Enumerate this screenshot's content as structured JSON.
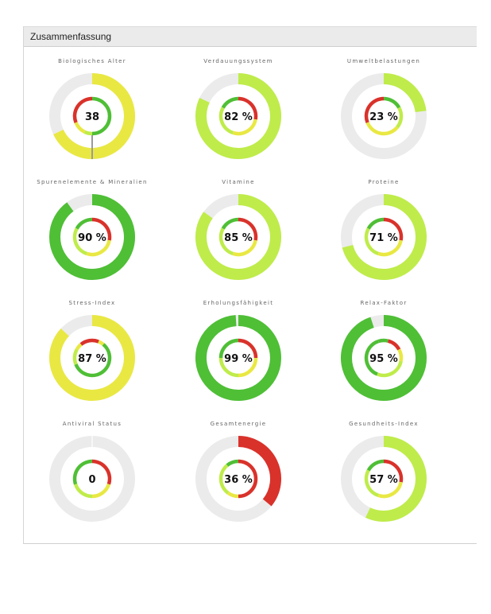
{
  "panel": {
    "title": "Zusammenfassung"
  },
  "colors": {
    "track": "#ebebeb",
    "red": "#d9322b",
    "yellow": "#e9e843",
    "yellow_green": "#bfec4a",
    "green": "#4fbf36",
    "needle": "#9a9a9a",
    "text": "#111111"
  },
  "chart_data": [
    {
      "type": "gauge",
      "title": "Biologisches Alter",
      "value_label": "38",
      "value": 38,
      "fill_fraction": 0.68,
      "fill_color": "yellow",
      "needle": true,
      "needle_fraction": 0.5,
      "inner_segments": [
        {
          "from": 0.0,
          "to": 0.5,
          "color": "green"
        },
        {
          "from": 0.5,
          "to": 0.57,
          "color": "yellow_green"
        },
        {
          "from": 0.57,
          "to": 0.69,
          "color": "yellow"
        },
        {
          "from": 0.69,
          "to": 1.0,
          "color": "red"
        }
      ]
    },
    {
      "type": "gauge",
      "title": "Verdauungssystem",
      "value_label": "82 %",
      "value": 82,
      "fill_fraction": 0.82,
      "fill_color": "yellow_green",
      "needle": false,
      "inner_segments": [
        {
          "from": 0.0,
          "to": 0.28,
          "color": "red"
        },
        {
          "from": 0.28,
          "to": 0.55,
          "color": "yellow"
        },
        {
          "from": 0.55,
          "to": 0.83,
          "color": "yellow_green"
        },
        {
          "from": 0.83,
          "to": 1.0,
          "color": "green"
        }
      ]
    },
    {
      "type": "gauge",
      "title": "Umweltbelastungen",
      "value_label": "23 %",
      "value": 23,
      "fill_fraction": 0.23,
      "fill_color": "yellow_green",
      "needle": false,
      "inner_segments": [
        {
          "from": 0.0,
          "to": 0.17,
          "color": "green"
        },
        {
          "from": 0.17,
          "to": 0.36,
          "color": "yellow_green"
        },
        {
          "from": 0.36,
          "to": 0.69,
          "color": "yellow"
        },
        {
          "from": 0.69,
          "to": 1.0,
          "color": "red"
        }
      ]
    },
    {
      "type": "gauge",
      "title": "Spurenelemente & Mineralien",
      "value_label": "90 %",
      "value": 90,
      "fill_fraction": 0.9,
      "fill_color": "green",
      "needle": false,
      "inner_segments": [
        {
          "from": 0.0,
          "to": 0.28,
          "color": "red"
        },
        {
          "from": 0.28,
          "to": 0.55,
          "color": "yellow"
        },
        {
          "from": 0.55,
          "to": 0.83,
          "color": "yellow_green"
        },
        {
          "from": 0.83,
          "to": 1.0,
          "color": "green"
        }
      ]
    },
    {
      "type": "gauge",
      "title": "Vitamine",
      "value_label": "85 %",
      "value": 85,
      "fill_fraction": 0.85,
      "fill_color": "yellow_green",
      "needle": false,
      "inner_segments": [
        {
          "from": 0.0,
          "to": 0.28,
          "color": "red"
        },
        {
          "from": 0.28,
          "to": 0.55,
          "color": "yellow"
        },
        {
          "from": 0.55,
          "to": 0.83,
          "color": "yellow_green"
        },
        {
          "from": 0.83,
          "to": 1.0,
          "color": "green"
        }
      ]
    },
    {
      "type": "gauge",
      "title": "Proteine",
      "value_label": "71 %",
      "value": 71,
      "fill_fraction": 0.71,
      "fill_color": "yellow_green",
      "needle": false,
      "inner_segments": [
        {
          "from": 0.0,
          "to": 0.28,
          "color": "red"
        },
        {
          "from": 0.28,
          "to": 0.55,
          "color": "yellow"
        },
        {
          "from": 0.55,
          "to": 0.83,
          "color": "yellow_green"
        },
        {
          "from": 0.83,
          "to": 1.0,
          "color": "green"
        }
      ]
    },
    {
      "type": "gauge",
      "title": "Stress-Index",
      "value_label": "87 %",
      "value": 87,
      "fill_fraction": 0.87,
      "fill_color": "yellow",
      "needle": false,
      "inner_segments": [
        {
          "from": -0.11,
          "to": 0.06,
          "color": "red"
        },
        {
          "from": 0.06,
          "to": 0.11,
          "color": "yellow"
        },
        {
          "from": 0.11,
          "to": 0.69,
          "color": "green"
        },
        {
          "from": 0.69,
          "to": 0.83,
          "color": "yellow_green"
        },
        {
          "from": 0.83,
          "to": 0.89,
          "color": "yellow"
        }
      ]
    },
    {
      "type": "gauge",
      "title": "Erholungsfähigkeit",
      "value_label": "99 %",
      "value": 99,
      "fill_fraction": 0.99,
      "fill_color": "green",
      "needle": false,
      "inner_segments": [
        {
          "from": 0.0,
          "to": 0.25,
          "color": "red"
        },
        {
          "from": 0.25,
          "to": 0.5,
          "color": "yellow"
        },
        {
          "from": 0.5,
          "to": 0.75,
          "color": "yellow_green"
        },
        {
          "from": 0.75,
          "to": 1.0,
          "color": "green"
        }
      ]
    },
    {
      "type": "gauge",
      "title": "Relax-Faktor",
      "value_label": "95 %",
      "value": 95,
      "fill_fraction": 0.95,
      "fill_color": "green",
      "needle": false,
      "inner_segments": [
        {
          "from": -0.05,
          "to": 0.04,
          "color": "green"
        },
        {
          "from": 0.04,
          "to": 0.17,
          "color": "red"
        },
        {
          "from": 0.17,
          "to": 0.28,
          "color": "yellow"
        },
        {
          "from": 0.28,
          "to": 0.56,
          "color": "yellow_green"
        },
        {
          "from": 0.56,
          "to": 0.95,
          "color": "green"
        }
      ]
    },
    {
      "type": "gauge",
      "title": "Antiviral Status",
      "value_label": "0",
      "value": 0,
      "fill_fraction": 0.0,
      "fill_color": "green",
      "needle": false,
      "inner_segments": [
        {
          "from": 0.0,
          "to": 0.3,
          "color": "red"
        },
        {
          "from": 0.3,
          "to": 0.5,
          "color": "yellow"
        },
        {
          "from": 0.5,
          "to": 0.7,
          "color": "yellow_green"
        },
        {
          "from": 0.7,
          "to": 1.0,
          "color": "green"
        }
      ]
    },
    {
      "type": "gauge",
      "title": "Gesamtenergie",
      "value_label": "36 %",
      "value": 36,
      "fill_fraction": 0.36,
      "fill_color": "red",
      "needle": false,
      "inner_segments": [
        {
          "from": 0.0,
          "to": 0.5,
          "color": "red"
        },
        {
          "from": 0.5,
          "to": 0.6,
          "color": "yellow"
        },
        {
          "from": 0.6,
          "to": 0.89,
          "color": "yellow_green"
        },
        {
          "from": 0.89,
          "to": 1.0,
          "color": "green"
        }
      ]
    },
    {
      "type": "gauge",
      "title": "Gesundheits-Index",
      "value_label": "57 %",
      "value": 57,
      "fill_fraction": 0.57,
      "fill_color": "yellow_green",
      "needle": false,
      "inner_segments": [
        {
          "from": 0.0,
          "to": 0.28,
          "color": "red"
        },
        {
          "from": 0.28,
          "to": 0.55,
          "color": "yellow"
        },
        {
          "from": 0.55,
          "to": 0.83,
          "color": "yellow_green"
        },
        {
          "from": 0.83,
          "to": 1.0,
          "color": "green"
        }
      ]
    }
  ]
}
